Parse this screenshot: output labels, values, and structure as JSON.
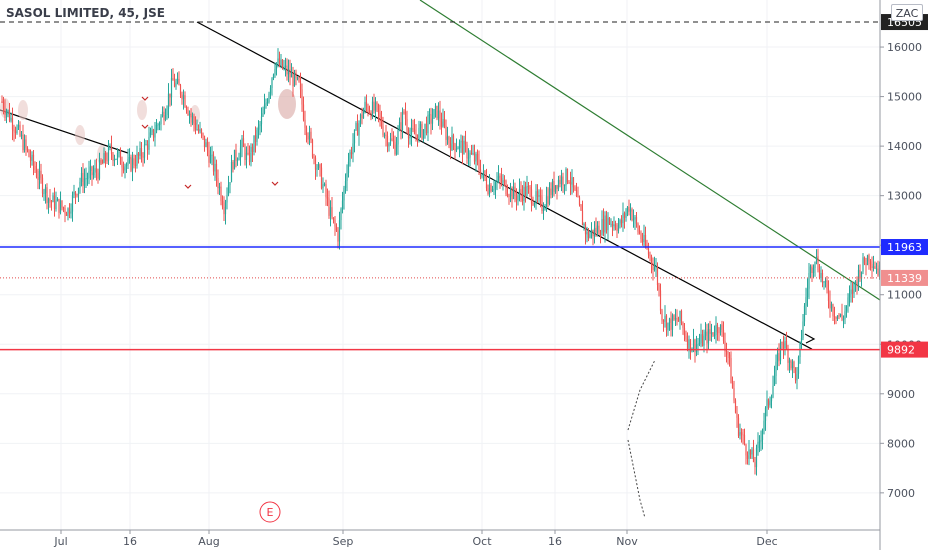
{
  "header": {
    "title": "SASOL LIMITED, 45, JSE",
    "currency_button": "ZAC"
  },
  "chart_data": {
    "type": "candlestick",
    "ylim": [
      6250,
      16950
    ],
    "y_ticks": [
      7000,
      8000,
      9000,
      10000,
      11000,
      12000,
      13000,
      14000,
      15000,
      16000
    ],
    "x_tick_labels": [
      "Jul",
      "16",
      "Aug",
      "Sep",
      "Oct",
      "16",
      "Nov",
      "Dec"
    ],
    "event_marker": "E",
    "price_labels": [
      {
        "label": "16505",
        "value": 16505,
        "style": "dashed",
        "color": "#222222"
      },
      {
        "label": "11963",
        "value": 11963,
        "style": "solid",
        "color": "#1f2bff"
      },
      {
        "label": "11339",
        "value": 11339,
        "style": "dotted",
        "color": "#e24a4a"
      },
      {
        "label": "9892",
        "value": 9892,
        "style": "solid",
        "color": "#f23645"
      }
    ],
    "colors": {
      "up": "#26a69a",
      "down": "#ef5350",
      "trendline_down": "#000000",
      "trendline_channel": "#2e7d32"
    },
    "price_path": [
      {
        "t": 0,
        "p": 14900
      },
      {
        "t": 0.3,
        "p": 14200
      },
      {
        "t": 0.6,
        "p": 13400
      },
      {
        "t": 0.8,
        "p": 12900
      },
      {
        "t": 1.1,
        "p": 12700
      },
      {
        "t": 1.3,
        "p": 13300
      },
      {
        "t": 1.6,
        "p": 13500
      },
      {
        "t": 1.8,
        "p": 13900
      },
      {
        "t": 2.1,
        "p": 13600
      },
      {
        "t": 2.3,
        "p": 13800
      },
      {
        "t": 2.5,
        "p": 14200
      },
      {
        "t": 2.7,
        "p": 14700
      },
      {
        "t": 2.85,
        "p": 15300
      },
      {
        "t": 3.0,
        "p": 15100
      },
      {
        "t": 3.15,
        "p": 14600
      },
      {
        "t": 3.4,
        "p": 14000
      },
      {
        "t": 3.55,
        "p": 13500
      },
      {
        "t": 3.7,
        "p": 12800
      },
      {
        "t": 3.85,
        "p": 13700
      },
      {
        "t": 4.0,
        "p": 14000
      },
      {
        "t": 4.1,
        "p": 13700
      },
      {
        "t": 4.35,
        "p": 14600
      },
      {
        "t": 4.55,
        "p": 15700
      },
      {
        "t": 4.75,
        "p": 15500
      },
      {
        "t": 4.95,
        "p": 15200
      },
      {
        "t": 5.05,
        "p": 14500
      },
      {
        "t": 5.2,
        "p": 13800
      },
      {
        "t": 5.35,
        "p": 13200
      },
      {
        "t": 5.5,
        "p": 12500
      },
      {
        "t": 5.6,
        "p": 12200
      },
      {
        "t": 5.75,
        "p": 13600
      },
      {
        "t": 5.9,
        "p": 14300
      },
      {
        "t": 6.05,
        "p": 14800
      },
      {
        "t": 6.25,
        "p": 14700
      },
      {
        "t": 6.4,
        "p": 14200
      },
      {
        "t": 6.55,
        "p": 14000
      },
      {
        "t": 6.7,
        "p": 14700
      },
      {
        "t": 6.8,
        "p": 14200
      },
      {
        "t": 7.0,
        "p": 14300
      },
      {
        "t": 7.25,
        "p": 14700
      },
      {
        "t": 7.45,
        "p": 14100
      },
      {
        "t": 7.65,
        "p": 14000
      },
      {
        "t": 7.9,
        "p": 13700
      },
      {
        "t": 8.1,
        "p": 13200
      },
      {
        "t": 8.3,
        "p": 13300
      },
      {
        "t": 8.55,
        "p": 13000
      },
      {
        "t": 8.75,
        "p": 13100
      },
      {
        "t": 9.0,
        "p": 12800
      },
      {
        "t": 9.25,
        "p": 13300
      },
      {
        "t": 9.45,
        "p": 13400
      },
      {
        "t": 9.6,
        "p": 12800
      },
      {
        "t": 9.75,
        "p": 12200
      },
      {
        "t": 9.9,
        "p": 12300
      },
      {
        "t": 10.1,
        "p": 12500
      },
      {
        "t": 10.3,
        "p": 12400
      },
      {
        "t": 10.45,
        "p": 12800
      },
      {
        "t": 10.6,
        "p": 12300
      },
      {
        "t": 10.75,
        "p": 11900
      },
      {
        "t": 10.9,
        "p": 11500
      },
      {
        "t": 11.0,
        "p": 10600
      },
      {
        "t": 11.1,
        "p": 10400
      },
      {
        "t": 11.3,
        "p": 10500
      },
      {
        "t": 11.45,
        "p": 10000
      },
      {
        "t": 11.6,
        "p": 10000
      },
      {
        "t": 11.8,
        "p": 10200
      },
      {
        "t": 11.95,
        "p": 10400
      },
      {
        "t": 12.1,
        "p": 9800
      },
      {
        "t": 12.25,
        "p": 8400
      },
      {
        "t": 12.4,
        "p": 7900
      },
      {
        "t": 12.55,
        "p": 7600
      },
      {
        "t": 12.7,
        "p": 8500
      },
      {
        "t": 12.85,
        "p": 9200
      },
      {
        "t": 13.0,
        "p": 10100
      },
      {
        "t": 13.1,
        "p": 9800
      },
      {
        "t": 13.25,
        "p": 9300
      },
      {
        "t": 13.35,
        "p": 10500
      },
      {
        "t": 13.45,
        "p": 11400
      },
      {
        "t": 13.55,
        "p": 11800
      },
      {
        "t": 13.7,
        "p": 11200
      },
      {
        "t": 13.85,
        "p": 10700
      },
      {
        "t": 14.0,
        "p": 10500
      },
      {
        "t": 14.15,
        "p": 11000
      },
      {
        "t": 14.3,
        "p": 11500
      },
      {
        "t": 14.45,
        "p": 11800
      },
      {
        "t": 14.55,
        "p": 11600
      },
      {
        "t": 14.65,
        "p": 11400
      }
    ]
  }
}
